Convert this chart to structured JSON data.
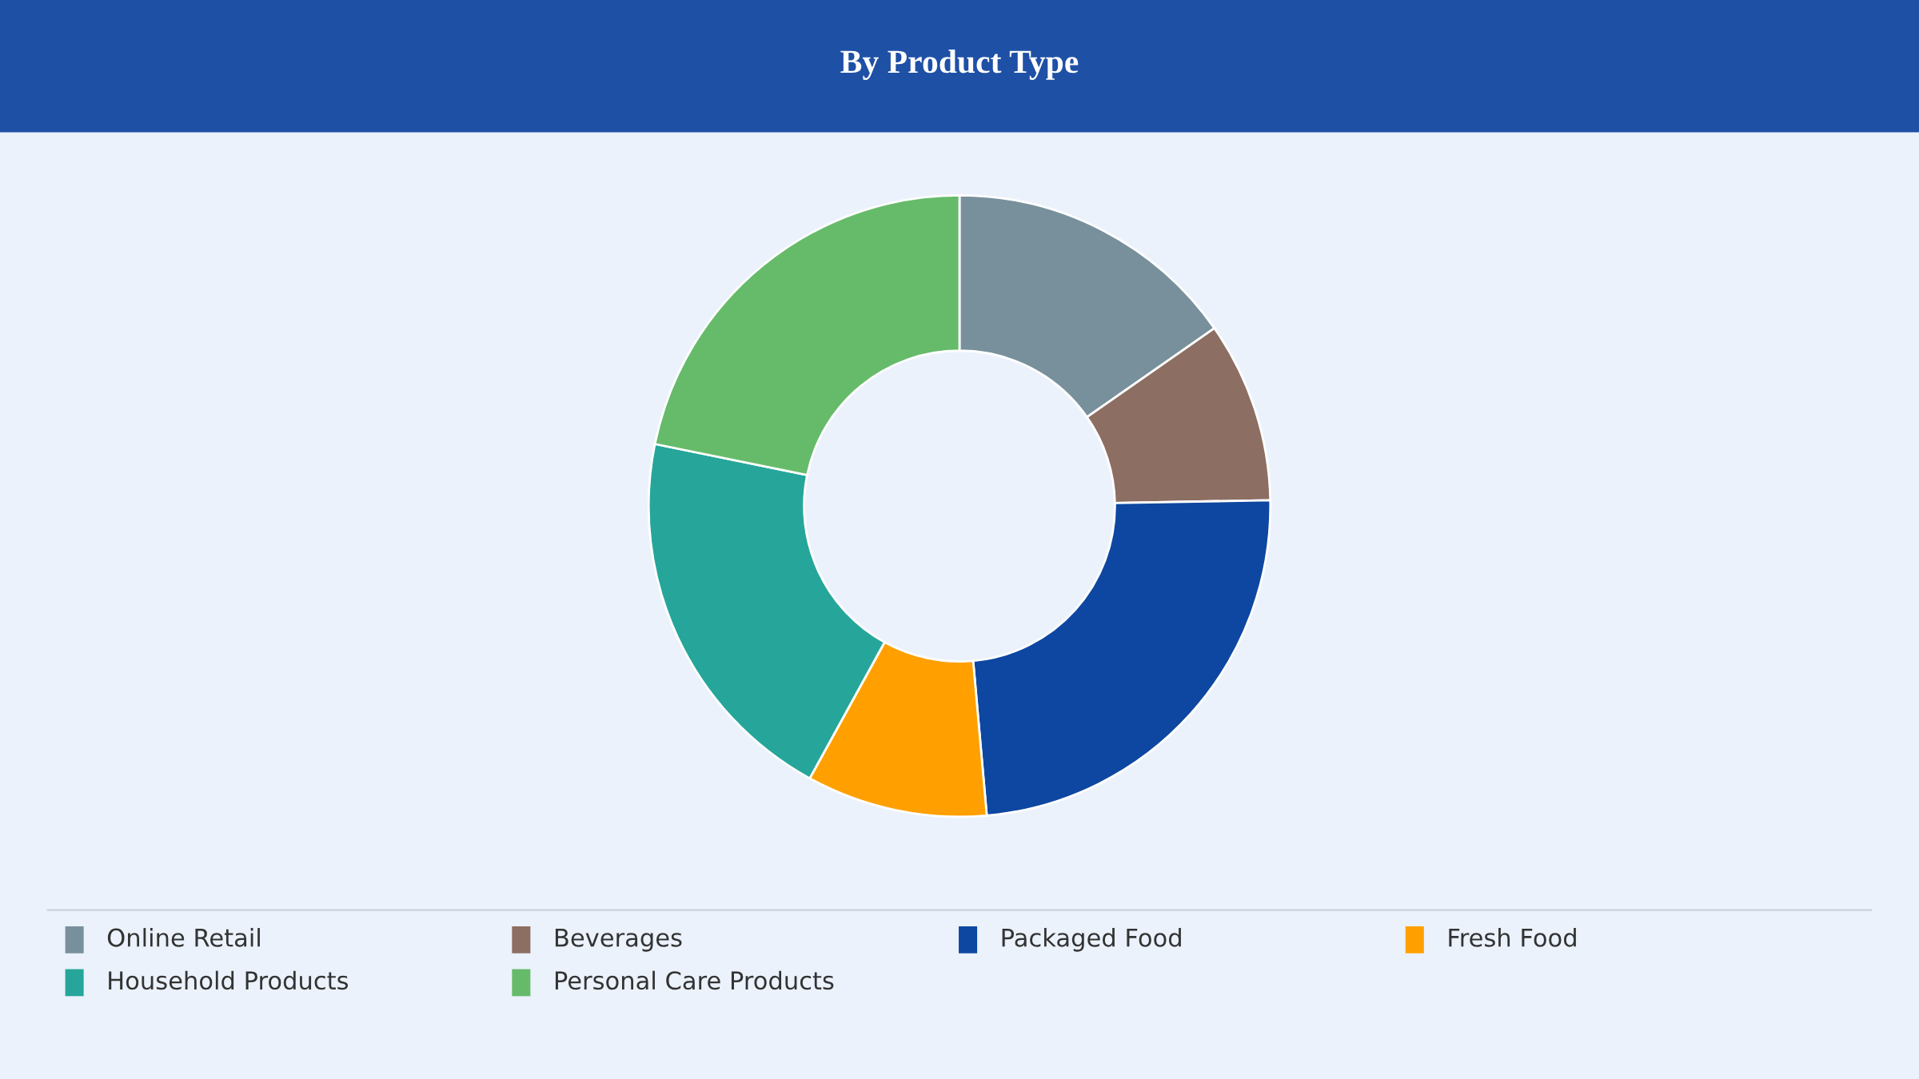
{
  "chart_data": {
    "type": "donut",
    "title": "By Product Type",
    "categories": [
      "Online Retail",
      "Beverages",
      "Packaged Food",
      "Fresh Food",
      "Household Products",
      "Personal Care Products"
    ],
    "values": [
      15.3,
      9.4,
      23.9,
      9.4,
      20.2,
      21.8
    ],
    "colors": [
      "#78909c",
      "#8d6e63",
      "#0d47a1",
      "#ffa000",
      "#26a69a",
      "#66bb6a"
    ],
    "legend": "bottom"
  }
}
